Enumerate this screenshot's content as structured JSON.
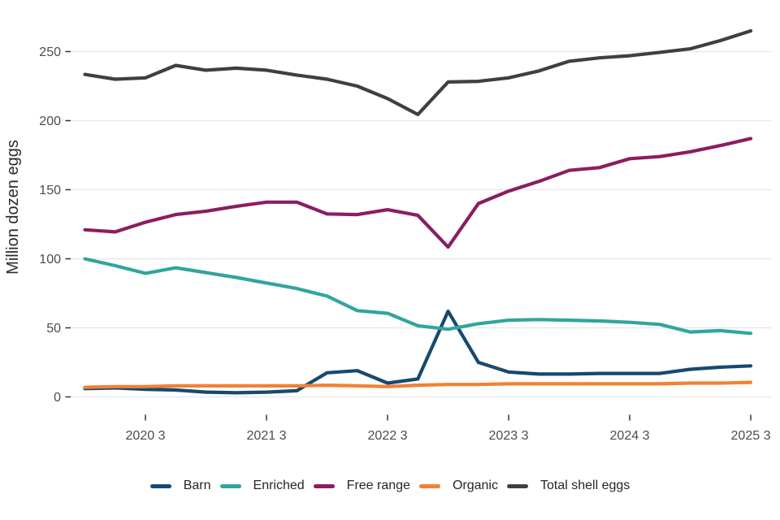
{
  "chart_data": {
    "type": "line",
    "title": "",
    "xlabel": "",
    "ylabel": "Million dozen eggs",
    "grid": true,
    "legend_position": "bottom",
    "ylim": [
      0,
      275
    ],
    "yticks": [
      0,
      50,
      100,
      150,
      200,
      250
    ],
    "x_tick_labels": [
      "2020 3",
      "2021 3",
      "2022 3",
      "2023 3",
      "2024 3",
      "2025 3"
    ],
    "x_tick_indices": [
      2,
      6,
      10,
      14,
      18,
      22
    ],
    "categories": [
      "2020 Q1",
      "2020 Q2",
      "2020 Q3",
      "2020 Q4",
      "2021 Q1",
      "2021 Q2",
      "2021 Q3",
      "2021 Q4",
      "2022 Q1",
      "2022 Q2",
      "2022 Q3",
      "2022 Q4",
      "2023 Q1",
      "2023 Q2",
      "2023 Q3",
      "2023 Q4",
      "2024 Q1",
      "2024 Q2",
      "2024 Q3",
      "2024 Q4",
      "2025 Q1",
      "2025 Q2",
      "2025 Q3"
    ],
    "series": [
      {
        "name": "Barn",
        "color": "#17496f",
        "values": [
          6,
          6.5,
          5.5,
          5,
          3.5,
          3,
          3.5,
          4.5,
          17.5,
          19,
          10,
          13,
          62,
          25,
          18,
          16.5,
          16.5,
          17,
          17,
          17,
          20,
          21.5,
          22.5
        ]
      },
      {
        "name": "Enriched",
        "color": "#31a59c",
        "values": [
          100,
          95,
          89.5,
          93.5,
          90,
          86.5,
          82.5,
          78.5,
          73,
          62.5,
          60.5,
          51.5,
          49,
          53,
          55.5,
          56,
          55.5,
          55,
          54,
          52.5,
          47,
          48,
          46
        ]
      },
      {
        "name": "Free range",
        "color": "#8a1e5e",
        "values": [
          121,
          119.5,
          126.5,
          132,
          134.5,
          138,
          141,
          141,
          132.5,
          132,
          135.5,
          131.5,
          108.5,
          140,
          149,
          156,
          164,
          166,
          172.5,
          174,
          177.5,
          182,
          187
        ]
      },
      {
        "name": "Organic",
        "color": "#f28133",
        "values": [
          7,
          7.5,
          7.5,
          8,
          8,
          8,
          8,
          8,
          8.5,
          8,
          7.5,
          8.5,
          9,
          9,
          9.5,
          9.5,
          9.5,
          9.5,
          9.5,
          9.5,
          10,
          10,
          10.5
        ]
      },
      {
        "name": "Total shell eggs",
        "color": "#3f3f3f",
        "values": [
          233.5,
          230,
          231,
          240,
          236.5,
          238,
          236.5,
          233,
          230,
          225,
          216,
          204.5,
          228,
          228.5,
          231,
          236,
          243,
          245.5,
          247,
          249.5,
          252,
          258,
          265
        ]
      }
    ],
    "style": {
      "gridline_color": "#e9e9e9",
      "tick_color": "#333333",
      "tick_label_color": "#4c4c4c",
      "axis_title_color": "#2b2b2b",
      "background": "#ffffff"
    }
  }
}
